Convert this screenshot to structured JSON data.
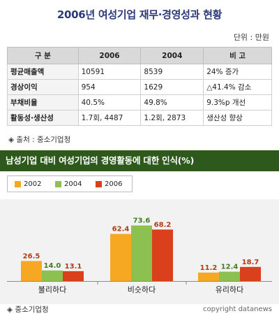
{
  "title": "2006년 여성기업 재무·경영성과 현황",
  "unit_label": "단위 : 만원",
  "table": {
    "headers": [
      "구 분",
      "2006",
      "2004",
      "비 고"
    ],
    "rows": [
      [
        "평균매출액",
        "10591",
        "8539",
        "24% 증가"
      ],
      [
        "경상이익",
        "954",
        "1629",
        "△41.4% 감소"
      ],
      [
        "부채비율",
        "40.5%",
        "49.8%",
        "9.3%p 개선"
      ],
      [
        "활동성·생산성",
        "1.7회, 4487",
        "1.2회, 2873",
        "생산성 향상"
      ]
    ]
  },
  "source_top": "◈ 출처 : 중소기업청",
  "banner": "남성기업 대비 여성기업의 경영활동에 대한 인식(%)",
  "legend": [
    {
      "label": "2002",
      "color": "#f7a823"
    },
    {
      "label": "2004",
      "color": "#8cc152"
    },
    {
      "label": "2006",
      "color": "#d9401b"
    }
  ],
  "chart_data": {
    "type": "bar",
    "categories": [
      "불리하다",
      "비슷하다",
      "유리하다"
    ],
    "series": [
      {
        "name": "2002",
        "values": [
          26.5,
          62.4,
          11.2
        ]
      },
      {
        "name": "2004",
        "values": [
          14.0,
          73.6,
          12.4
        ]
      },
      {
        "name": "2006",
        "values": [
          13.1,
          68.2,
          18.7
        ]
      }
    ],
    "value_labels": [
      [
        "26.5",
        "62.4",
        "11.2"
      ],
      [
        "14.0",
        "73.6",
        "12.4"
      ],
      [
        "13.1",
        "68.2",
        "18.7"
      ]
    ],
    "title": "남성기업 대비 여성기업의 경영활동에 대한 인식(%)",
    "ylim": [
      0,
      80
    ],
    "legend_position": "top-left",
    "grid": false
  },
  "source_bottom": "◈ 중소기업청",
  "copyright": "copyright datanews"
}
